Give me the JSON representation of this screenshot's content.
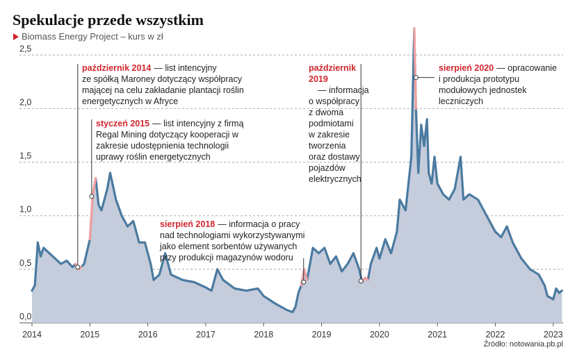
{
  "chart_data": {
    "type": "line",
    "title": "Spekulacje przede wszystkim",
    "subtitle": "Biomass Energy Project – kurs w zł",
    "source": "Źródło: notowania.pb.pl",
    "xlim": [
      2014,
      2023.17
    ],
    "xticks": [
      2014,
      2015,
      2016,
      2017,
      2018,
      2019,
      2020,
      2021,
      2022,
      2023
    ],
    "ylim": [
      0,
      2.8
    ],
    "yticks": [
      {
        "value": 0,
        "label": "0,0"
      },
      {
        "value": 0.5,
        "label": "0,5"
      },
      {
        "value": 1,
        "label": "1,0"
      },
      {
        "value": 1.5,
        "label": "1,5"
      },
      {
        "value": 2,
        "label": "2,0"
      },
      {
        "value": 2.5,
        "label": "2,5"
      }
    ],
    "grid": true,
    "area_color": "#c5ccdb",
    "x": [
      2014.0,
      2014.05,
      2014.1,
      2014.15,
      2014.2,
      2014.3,
      2014.4,
      2014.5,
      2014.6,
      2014.7,
      2014.75,
      2014.8,
      2014.85,
      2014.9,
      2015.0,
      2015.05,
      2015.1,
      2015.15,
      2015.2,
      2015.3,
      2015.35,
      2015.45,
      2015.55,
      2015.65,
      2015.75,
      2015.85,
      2015.95,
      2016.05,
      2016.1,
      2016.2,
      2016.3,
      2016.4,
      2016.6,
      2016.8,
      2017.0,
      2017.1,
      2017.2,
      2017.3,
      2017.5,
      2017.7,
      2017.9,
      2018.0,
      2018.2,
      2018.4,
      2018.5,
      2018.55,
      2018.6,
      2018.65,
      2018.7,
      2018.75,
      2018.85,
      2018.95,
      2019.05,
      2019.15,
      2019.25,
      2019.35,
      2019.45,
      2019.55,
      2019.65,
      2019.7,
      2019.75,
      2019.8,
      2019.85,
      2019.95,
      2020.0,
      2020.1,
      2020.2,
      2020.3,
      2020.35,
      2020.45,
      2020.55,
      2020.6,
      2020.63,
      2020.67,
      2020.72,
      2020.77,
      2020.82,
      2020.85,
      2020.9,
      2020.95,
      2021.0,
      2021.1,
      2021.2,
      2021.3,
      2021.4,
      2021.45,
      2021.55,
      2021.7,
      2021.8,
      2021.9,
      2022.0,
      2022.1,
      2022.2,
      2022.3,
      2022.45,
      2022.6,
      2022.75,
      2022.85,
      2022.9,
      2023.0,
      2023.05,
      2023.1,
      2023.15
    ],
    "series": [
      {
        "color": "#4a7aa0",
        "values": [
          0.3,
          0.35,
          0.75,
          0.62,
          0.7,
          0.65,
          0.6,
          0.55,
          0.58,
          0.52,
          0.55,
          0.5,
          0.52,
          0.55,
          0.78,
          1.2,
          1.35,
          1.1,
          1.05,
          1.25,
          1.4,
          1.15,
          1.0,
          0.9,
          0.95,
          0.75,
          0.75,
          0.55,
          0.4,
          0.45,
          0.65,
          0.45,
          0.4,
          0.38,
          0.33,
          0.3,
          0.5,
          0.4,
          0.32,
          0.3,
          0.32,
          0.25,
          0.18,
          0.12,
          0.1,
          0.15,
          0.28,
          0.35,
          0.5,
          0.4,
          0.7,
          0.65,
          0.7,
          0.55,
          0.62,
          0.48,
          0.55,
          0.65,
          0.5,
          0.38,
          0.42,
          0.4,
          0.55,
          0.7,
          0.6,
          0.78,
          0.65,
          0.85,
          1.15,
          1.05,
          1.55,
          2.75,
          2.0,
          1.4,
          1.85,
          1.65,
          1.9,
          1.4,
          1.3,
          1.55,
          1.3,
          1.2,
          1.15,
          1.25,
          1.55,
          1.15,
          1.2,
          1.15,
          1.05,
          0.95,
          0.85,
          0.8,
          0.9,
          0.75,
          0.6,
          0.5,
          0.45,
          0.35,
          0.25,
          0.22,
          0.32,
          0.28,
          0.3
        ]
      },
      {
        "color": "#f4a0a0",
        "values": [
          null,
          null,
          null,
          null,
          null,
          null,
          null,
          null,
          null,
          null,
          0.55,
          0.5,
          0.52,
          null,
          0.78,
          1.2,
          1.35,
          null,
          null,
          null,
          null,
          null,
          null,
          null,
          null,
          null,
          null,
          null,
          null,
          null,
          null,
          null,
          null,
          null,
          null,
          null,
          null,
          null,
          null,
          null,
          null,
          null,
          null,
          null,
          null,
          null,
          null,
          0.35,
          0.5,
          0.4,
          null,
          null,
          null,
          null,
          null,
          null,
          null,
          null,
          null,
          0.38,
          0.42,
          0.4,
          null,
          null,
          null,
          null,
          null,
          null,
          null,
          null,
          null,
          2.75,
          2.0,
          null,
          null,
          null,
          null,
          null,
          null,
          null,
          null,
          null,
          null,
          null,
          null,
          null,
          null,
          null,
          null,
          null,
          null,
          null,
          null,
          null,
          null,
          null,
          null,
          null,
          null,
          null,
          null,
          null,
          null
        ]
      }
    ],
    "annotations": [
      {
        "x": 2014.79,
        "y": 0.52,
        "date": [
          "październik 2014"
        ],
        "text": [
          "— list intencyjny",
          "ze spółką Maroney dotyczący współpracy",
          "mającej na celu zakładanie plantacji roślin",
          "energetycznych w Afryce"
        ]
      },
      {
        "x": 2015.03,
        "y": 1.18,
        "date": [
          "styczeń 2015"
        ],
        "text": [
          "— list intencyjny z firmą",
          "Regal Mining dotyczący kooperacji w",
          "zakresie udostępnienia technologii",
          "uprawy roślin energetycznych"
        ]
      },
      {
        "x": 2018.69,
        "y": 0.38,
        "date": [
          "sierpień 2018"
        ],
        "text": [
          "— informacja o pracy",
          "nad technologiami wykorzystywanymi",
          "jako element sorbentów używanych",
          "przy produkcji magazynów wodoru"
        ]
      },
      {
        "x": 2019.68,
        "y": 0.39,
        "date": [
          "październik",
          "2019"
        ],
        "text": [
          "— informacja",
          "o współpracy",
          "z dwoma",
          "podmiotami",
          "w zakresie",
          "tworzenia",
          "oraz dostawy",
          "pojazdów",
          "elektrycznych"
        ]
      },
      {
        "x": 2020.63,
        "y": 2.29,
        "date": [
          "sierpień 2020"
        ],
        "text": [
          "— opracowanie",
          "i produkcja prototypu",
          "modułowych jednostek",
          "leczniczych"
        ]
      }
    ]
  }
}
